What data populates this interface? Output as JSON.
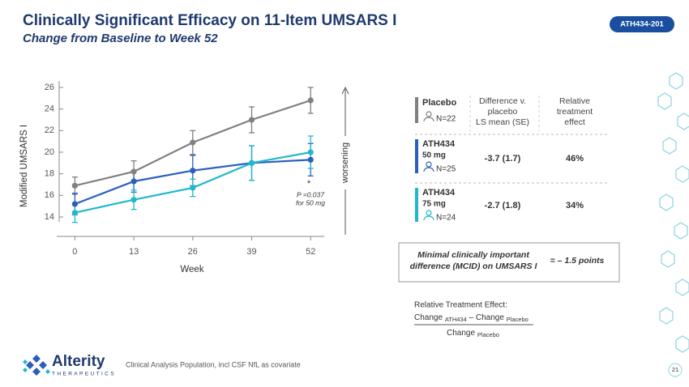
{
  "header": {
    "title": "Clinically Significant Efficacy on 11-Item UMSARS I",
    "subtitle": "Change from Baseline to Week 52",
    "badge": "ATH434-201"
  },
  "chart_data": {
    "type": "line",
    "x_label": "Week",
    "y_label": "Modified UMSARS I",
    "direction_label": "worsening",
    "annotation": {
      "mark": "*",
      "lines": [
        "P =0.037",
        "for 50 mg"
      ]
    },
    "x": [
      0,
      13,
      26,
      39,
      52
    ],
    "xlim": [
      -4,
      55
    ],
    "xticks": [
      0,
      13,
      26,
      39,
      52
    ],
    "ylim": [
      12.2,
      26.6
    ],
    "yticks": [
      14,
      16,
      18,
      20,
      22,
      24,
      26
    ],
    "series": [
      {
        "name": "Placebo",
        "n": "N=22",
        "color": "#808080",
        "values": [
          16.9,
          18.2,
          20.9,
          23.0,
          24.8
        ],
        "errors": [
          0.8,
          1.0,
          1.1,
          1.2,
          1.2
        ]
      },
      {
        "name": "ATH434",
        "dose": "50 mg",
        "n": "N=25",
        "color": "#2b5fbd",
        "values": [
          15.2,
          17.3,
          18.3,
          19.0,
          19.3
        ],
        "errors": [
          1.0,
          1.0,
          1.4,
          1.6,
          1.5
        ]
      },
      {
        "name": "ATH434",
        "dose": "75 mg",
        "n": "N=24",
        "color": "#22b8cc",
        "values": [
          14.4,
          15.6,
          16.7,
          19.0,
          20.0
        ],
        "errors": [
          0.9,
          0.9,
          0.8,
          1.6,
          1.5
        ]
      }
    ]
  },
  "table": {
    "headers": [
      [
        "Difference v.",
        "placebo",
        "LS mean (SE)"
      ],
      [
        "Relative",
        "treatment",
        "effect"
      ]
    ],
    "rows": [
      [
        "-3.7 (1.7)",
        "46%"
      ],
      [
        "-2.7 (1.8)",
        "34%"
      ]
    ]
  },
  "mcid": {
    "lines": [
      "Minimal clinically important",
      "difference (MCID) on UMSARS I"
    ],
    "value": "= – 1.5 points"
  },
  "formula": {
    "label": "Relative Treatment Effect:",
    "numerator": [
      "Change",
      "ATH434",
      "– Change",
      "Placebo"
    ],
    "denominator": [
      "Change",
      "Placebo"
    ]
  },
  "footer": {
    "logo": "Alterity",
    "logo_sub": "THERAPEUTICS",
    "note": "Clinical Analysis Population, incl CSF NfL as covariate",
    "page": "21"
  }
}
